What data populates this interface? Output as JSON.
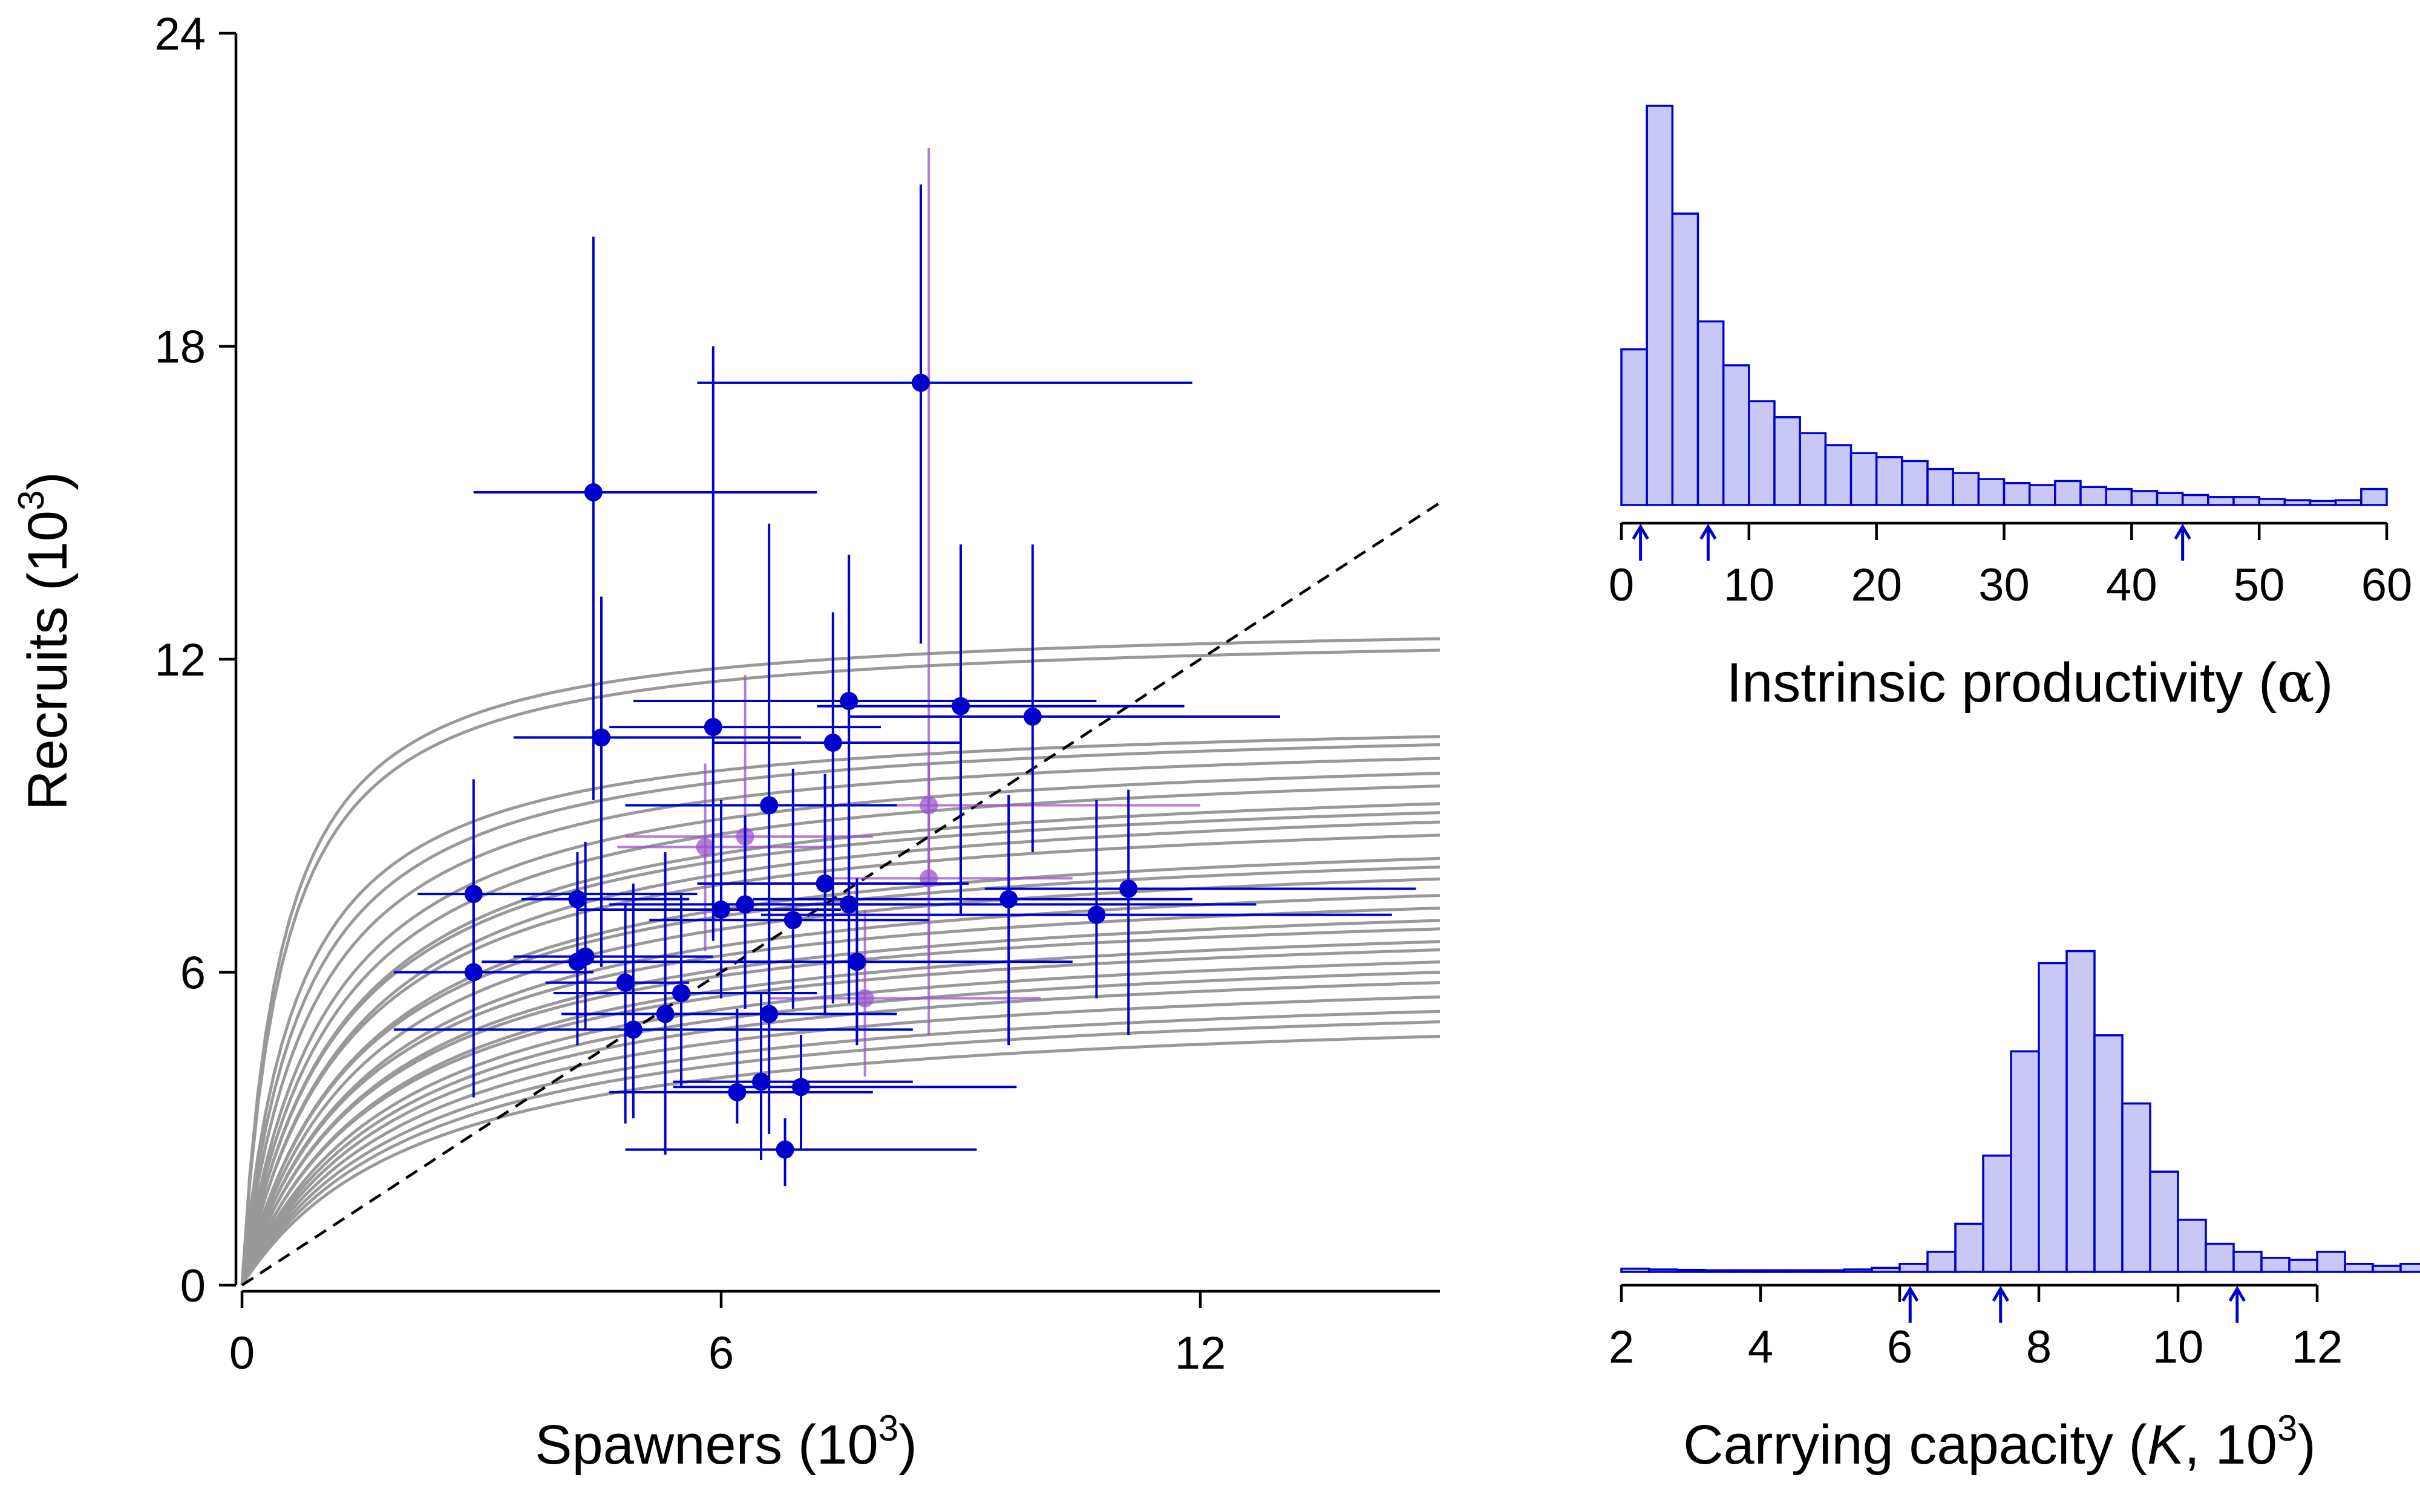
{
  "chart_data": [
    {
      "type": "scatter",
      "xlabel": "Spawners",
      "xlabel_unit": "(10",
      "xlabel_exp": "3",
      "xlabel_close": ")",
      "ylabel": "Recruits",
      "ylabel_unit": "(10",
      "ylabel_exp": "3",
      "ylabel_close": ")",
      "xlim": [
        0,
        15
      ],
      "ylim": [
        0,
        24
      ],
      "xticks": [
        "0",
        "6",
        "12"
      ],
      "xtick_values": [
        0,
        6,
        12
      ],
      "yticks": [
        "0",
        "6",
        "12",
        "18",
        "24"
      ],
      "ytick_values": [
        0,
        6,
        12,
        18,
        24
      ],
      "grid": false,
      "replacement_line": {
        "style": "dashed",
        "color": "#000000",
        "slope": 1
      },
      "curve_color": "#999999",
      "point_color": "#0000cc",
      "faded_point_color": "#9955cc",
      "curves": [
        {
          "a": 26,
          "k": 12.8
        },
        {
          "a": 24,
          "k": 12.6
        },
        {
          "a": 16,
          "k": 11.0
        },
        {
          "a": 14,
          "k": 10.9
        },
        {
          "a": 12,
          "k": 10.7
        },
        {
          "a": 10,
          "k": 10.5
        },
        {
          "a": 9,
          "k": 10.3
        },
        {
          "a": 8,
          "k": 10.0
        },
        {
          "a": 8,
          "k": 9.8
        },
        {
          "a": 7,
          "k": 9.7
        },
        {
          "a": 7,
          "k": 9.4
        },
        {
          "a": 6,
          "k": 9.0
        },
        {
          "a": 6,
          "k": 8.8
        },
        {
          "a": 5.5,
          "k": 8.6
        },
        {
          "a": 5,
          "k": 8.3
        },
        {
          "a": 5,
          "k": 8.0
        },
        {
          "a": 4.5,
          "k": 7.8
        },
        {
          "a": 4.5,
          "k": 7.6
        },
        {
          "a": 4,
          "k": 7.4
        },
        {
          "a": 4,
          "k": 7.2
        },
        {
          "a": 3.6,
          "k": 7.0
        },
        {
          "a": 3.4,
          "k": 6.8
        },
        {
          "a": 3.2,
          "k": 6.6
        },
        {
          "a": 3,
          "k": 6.3
        },
        {
          "a": 2.8,
          "k": 6.0
        },
        {
          "a": 2.6,
          "k": 5.8
        },
        {
          "a": 2.4,
          "k": 5.5
        }
      ],
      "points": [
        {
          "x": 8.5,
          "y": 17.3,
          "xlo": 5.7,
          "xhi": 11.9,
          "ylo": 12.3,
          "yhi": 21.1,
          "faded": false
        },
        {
          "x": 4.4,
          "y": 15.2,
          "xlo": 2.9,
          "xhi": 7.2,
          "ylo": 9.3,
          "yhi": 20.1,
          "faded": false
        },
        {
          "x": 4.5,
          "y": 10.5,
          "xlo": 3.4,
          "xhi": 7.0,
          "ylo": 6.1,
          "yhi": 13.2,
          "faded": false
        },
        {
          "x": 5.9,
          "y": 10.7,
          "xlo": 4.6,
          "xhi": 8.0,
          "ylo": 6.6,
          "yhi": 18.0,
          "faded": false
        },
        {
          "x": 7.6,
          "y": 11.2,
          "xlo": 4.9,
          "xhi": 10.7,
          "ylo": 7.6,
          "yhi": 14.0,
          "faded": false
        },
        {
          "x": 9.0,
          "y": 11.1,
          "xlo": 7.2,
          "xhi": 11.8,
          "ylo": 7.1,
          "yhi": 14.2,
          "faded": false
        },
        {
          "x": 9.9,
          "y": 10.9,
          "xlo": 7.6,
          "xhi": 13.0,
          "ylo": 8.3,
          "yhi": 14.2,
          "faded": false
        },
        {
          "x": 7.4,
          "y": 10.4,
          "xlo": 5.9,
          "xhi": 9.0,
          "ylo": 5.4,
          "yhi": 12.9,
          "faded": false
        },
        {
          "x": 6.6,
          "y": 9.2,
          "xlo": 4.8,
          "xhi": 8.2,
          "ylo": 4.9,
          "yhi": 14.6,
          "faded": false
        },
        {
          "x": 2.9,
          "y": 7.5,
          "xlo": 2.2,
          "xhi": 5.7,
          "ylo": 5.4,
          "yhi": 9.7,
          "faded": false
        },
        {
          "x": 4.2,
          "y": 7.4,
          "xlo": 3.5,
          "xhi": 5.6,
          "ylo": 5.2,
          "yhi": 8.3,
          "faded": false
        },
        {
          "x": 6.0,
          "y": 7.2,
          "xlo": 4.2,
          "xhi": 7.5,
          "ylo": 5.5,
          "yhi": 9.3,
          "faded": false
        },
        {
          "x": 6.3,
          "y": 7.3,
          "xlo": 4.6,
          "xhi": 8.3,
          "ylo": 5.3,
          "yhi": 9.0,
          "faded": false
        },
        {
          "x": 6.9,
          "y": 7.0,
          "xlo": 5.1,
          "xhi": 8.6,
          "ylo": 5.3,
          "yhi": 9.9,
          "faded": false
        },
        {
          "x": 7.3,
          "y": 7.7,
          "xlo": 5.7,
          "xhi": 9.1,
          "ylo": 5.2,
          "yhi": 9.8,
          "faded": false
        },
        {
          "x": 7.6,
          "y": 7.3,
          "xlo": 6.1,
          "xhi": 12.7,
          "ylo": 5.4,
          "yhi": 9.0,
          "faded": false
        },
        {
          "x": 9.6,
          "y": 7.4,
          "xlo": 6.4,
          "xhi": 11.9,
          "ylo": 4.6,
          "yhi": 9.4,
          "faded": false
        },
        {
          "x": 11.1,
          "y": 7.6,
          "xlo": 9.3,
          "xhi": 14.7,
          "ylo": 4.8,
          "yhi": 9.5,
          "faded": false
        },
        {
          "x": 10.7,
          "y": 7.1,
          "xlo": 6.5,
          "xhi": 14.4,
          "ylo": 5.5,
          "yhi": 9.3,
          "faded": false
        },
        {
          "x": 2.9,
          "y": 6.0,
          "xlo": 1.9,
          "xhi": 4.4,
          "ylo": 3.6,
          "yhi": 8.4,
          "faded": false
        },
        {
          "x": 4.2,
          "y": 6.2,
          "xlo": 3.0,
          "xhi": 6.6,
          "ylo": 4.6,
          "yhi": 8.1,
          "faded": false
        },
        {
          "x": 4.3,
          "y": 6.3,
          "xlo": 3.4,
          "xhi": 5.9,
          "ylo": 4.9,
          "yhi": 8.5,
          "faded": false
        },
        {
          "x": 4.8,
          "y": 5.8,
          "xlo": 3.8,
          "xhi": 5.6,
          "ylo": 3.1,
          "yhi": 7.3,
          "faded": false
        },
        {
          "x": 5.5,
          "y": 5.6,
          "xlo": 3.9,
          "xhi": 7.2,
          "ylo": 3.8,
          "yhi": 7.5,
          "faded": false
        },
        {
          "x": 7.7,
          "y": 6.2,
          "xlo": 5.8,
          "xhi": 10.4,
          "ylo": 4.6,
          "yhi": 7.8,
          "faded": false
        },
        {
          "x": 5.3,
          "y": 5.2,
          "xlo": 4.4,
          "xhi": 7.4,
          "ylo": 2.5,
          "yhi": 8.3,
          "faded": false
        },
        {
          "x": 4.9,
          "y": 4.9,
          "xlo": 1.9,
          "xhi": 8.4,
          "ylo": 3.2,
          "yhi": 7.7,
          "faded": false
        },
        {
          "x": 6.6,
          "y": 5.2,
          "xlo": 4.0,
          "xhi": 8.2,
          "ylo": 2.9,
          "yhi": 7.1,
          "faded": false
        },
        {
          "x": 6.2,
          "y": 3.7,
          "xlo": 4.6,
          "xhi": 7.9,
          "ylo": 3.1,
          "yhi": 5.3,
          "faded": false
        },
        {
          "x": 6.5,
          "y": 3.9,
          "xlo": 5.4,
          "xhi": 8.4,
          "ylo": 2.4,
          "yhi": 5.6,
          "faded": false
        },
        {
          "x": 7.0,
          "y": 3.8,
          "xlo": 5.4,
          "xhi": 9.7,
          "ylo": 2.6,
          "yhi": 4.8,
          "faded": false
        },
        {
          "x": 6.8,
          "y": 2.6,
          "xlo": 4.8,
          "xhi": 9.2,
          "ylo": 1.9,
          "yhi": 3.2,
          "faded": false
        },
        {
          "x": 8.6,
          "y": 9.2,
          "xlo": 6.8,
          "xhi": 12.0,
          "ylo": 6.1,
          "yhi": 21.8,
          "faded": true
        },
        {
          "x": 5.8,
          "y": 8.4,
          "xlo": 4.7,
          "xhi": 7.4,
          "ylo": 6.4,
          "yhi": 10.0,
          "faded": true
        },
        {
          "x": 6.3,
          "y": 8.6,
          "xlo": 4.8,
          "xhi": 7.9,
          "ylo": 6.0,
          "yhi": 11.7,
          "faded": true
        },
        {
          "x": 8.6,
          "y": 7.8,
          "xlo": 7.3,
          "xhi": 10.4,
          "ylo": 4.8,
          "yhi": 10.0,
          "faded": true
        },
        {
          "x": 7.8,
          "y": 5.5,
          "xlo": 6.6,
          "xhi": 10.0,
          "ylo": 4.0,
          "yhi": 7.2,
          "faded": true
        }
      ]
    },
    {
      "type": "bar",
      "subtype": "histogram",
      "xlabel": "Instrinsic productivity",
      "xlabel_open": "(",
      "xlabel_symbol": "α",
      "xlabel_close": ")",
      "xlim": [
        0,
        60
      ],
      "bin_width": 2,
      "bin_start": 0,
      "xticks": [
        "0",
        "10",
        "20",
        "30",
        "40",
        "50",
        "60"
      ],
      "xtick_values": [
        0,
        10,
        20,
        30,
        40,
        50,
        60
      ],
      "fill": "#c8c8f5",
      "stroke": "#0000cc",
      "values": [
        0.39,
        1.0,
        0.73,
        0.46,
        0.35,
        0.26,
        0.22,
        0.18,
        0.15,
        0.13,
        0.12,
        0.11,
        0.09,
        0.08,
        0.065,
        0.055,
        0.05,
        0.06,
        0.045,
        0.04,
        0.035,
        0.03,
        0.025,
        0.02,
        0.02,
        0.015,
        0.012,
        0.01,
        0.012,
        0.04
      ],
      "arrows": [
        1.5,
        6.8,
        44
      ]
    },
    {
      "type": "bar",
      "subtype": "histogram",
      "xlabel": "Carrying capacity",
      "xlabel_open": "(",
      "xlabel_italic": "K",
      "xlabel_mid": ", 10",
      "xlabel_exp": "3",
      "xlabel_close": ")",
      "xlim": [
        2,
        13
      ],
      "bin_width": 0.4,
      "bin_start": 2,
      "xticks": [
        "2",
        "4",
        "6",
        "8",
        "10",
        "12"
      ],
      "xtick_values": [
        2,
        4,
        6,
        8,
        10,
        12
      ],
      "fill": "#c8c8f5",
      "stroke": "#0000cc",
      "values": [
        0.008,
        0.006,
        0.005,
        0.004,
        0.004,
        0.004,
        0.004,
        0.004,
        0.006,
        0.01,
        0.02,
        0.05,
        0.12,
        0.29,
        0.55,
        0.77,
        0.8,
        0.59,
        0.42,
        0.25,
        0.13,
        0.07,
        0.05,
        0.035,
        0.03,
        0.05,
        0.02,
        0.015,
        0.02,
        0.07
      ],
      "arrows": [
        6.15,
        7.45,
        10.85
      ]
    }
  ]
}
